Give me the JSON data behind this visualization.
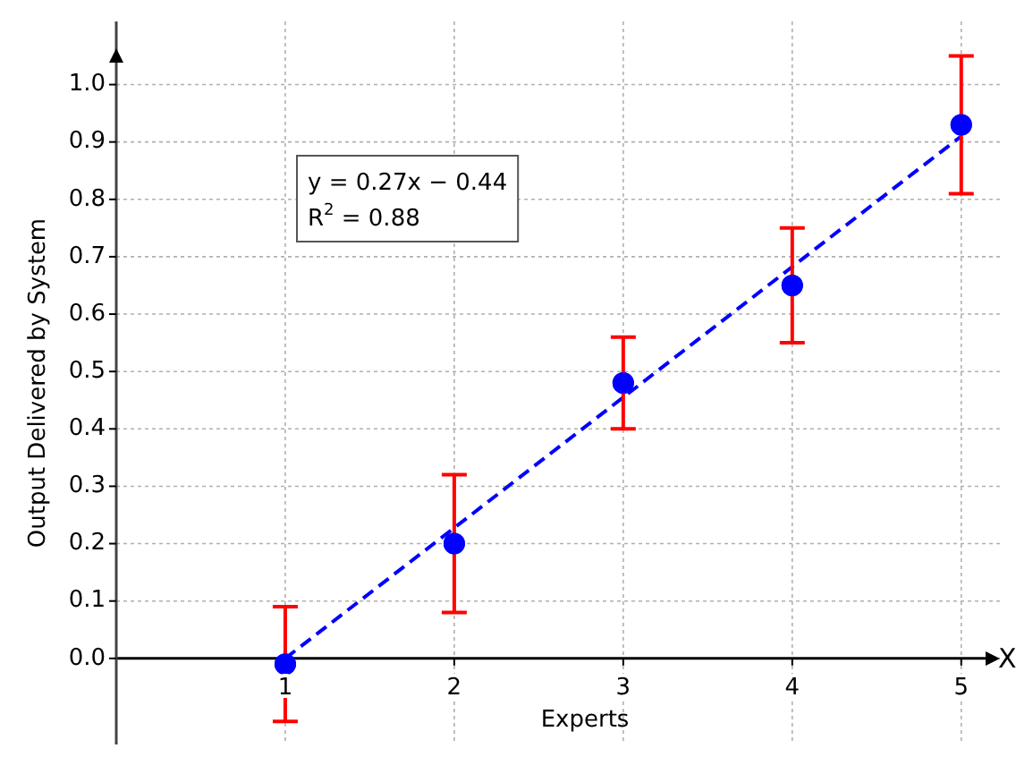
{
  "chart_data": {
    "type": "scatter",
    "xlabel": "Experts",
    "ylabel": "Output Delivered by System",
    "annotations": [
      "y = 0.27x − 0.44",
      "R$^{2}$ = 0.88",
      "X"
    ],
    "x": [
      1,
      2,
      3,
      4,
      5
    ],
    "series": [
      {
        "color": "#0000ff",
        "values": [
          -0.01,
          0.2,
          0.48,
          0.65,
          0.93
        ],
        "errors": [
          0.1,
          0.12,
          0.08,
          0.1,
          0.12
        ],
        "marker": "circle"
      },
      {
        "type": "line",
        "color": "#0000ff",
        "x": [
          1,
          5
        ],
        "values": [
          0.0,
          0.91
        ],
        "marker": "none",
        "line_style": "dashed"
      }
    ],
    "xlim": [
      0,
      5.25
    ],
    "xticks": [
      1,
      2,
      3,
      4,
      5
    ],
    "ylim": [
      -0.15,
      1.11
    ],
    "yticks": [
      {
        "value": 0,
        "label": "0.0"
      },
      0.1,
      0.2,
      0.3,
      0.4,
      0.5,
      0.6,
      0.7,
      0.8,
      0.9,
      {
        "value": 1,
        "label": "1.0"
      }
    ],
    "grid": true
  }
}
